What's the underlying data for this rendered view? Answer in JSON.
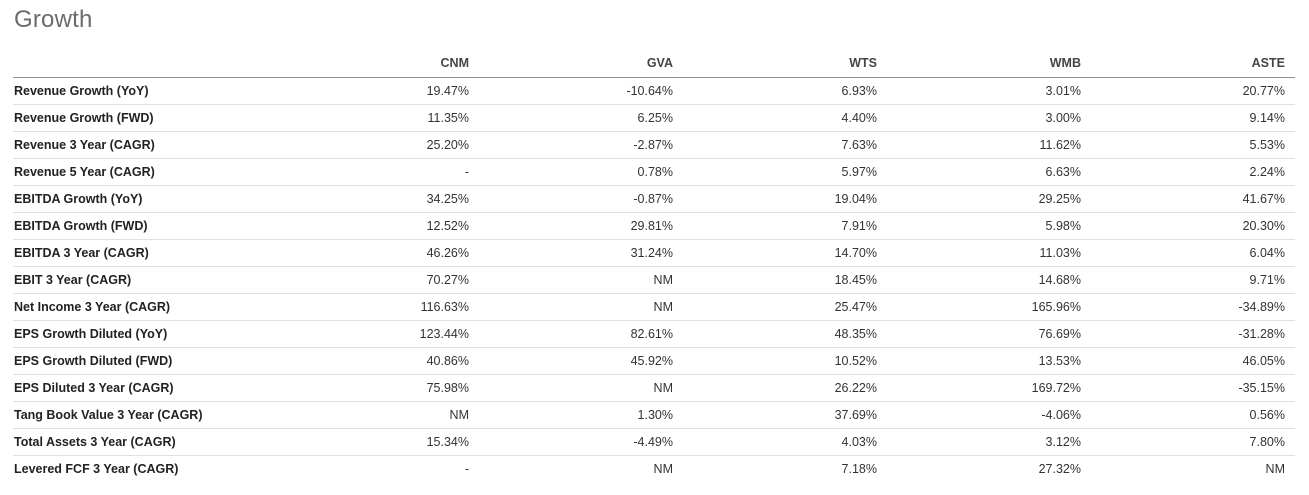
{
  "section": {
    "title": "Growth"
  },
  "table": {
    "metric_column_header": "",
    "columns": [
      "CNM",
      "GVA",
      "WTS",
      "WMB",
      "ASTE"
    ],
    "rows": [
      {
        "label": "Revenue Growth (YoY)",
        "values": [
          "19.47%",
          "-10.64%",
          "6.93%",
          "3.01%",
          "20.77%"
        ]
      },
      {
        "label": "Revenue Growth (FWD)",
        "values": [
          "11.35%",
          "6.25%",
          "4.40%",
          "3.00%",
          "9.14%"
        ]
      },
      {
        "label": "Revenue 3 Year (CAGR)",
        "values": [
          "25.20%",
          "-2.87%",
          "7.63%",
          "11.62%",
          "5.53%"
        ]
      },
      {
        "label": "Revenue 5 Year (CAGR)",
        "values": [
          "-",
          "0.78%",
          "5.97%",
          "6.63%",
          "2.24%"
        ]
      },
      {
        "label": "EBITDA Growth (YoY)",
        "values": [
          "34.25%",
          "-0.87%",
          "19.04%",
          "29.25%",
          "41.67%"
        ]
      },
      {
        "label": "EBITDA Growth (FWD)",
        "values": [
          "12.52%",
          "29.81%",
          "7.91%",
          "5.98%",
          "20.30%"
        ]
      },
      {
        "label": "EBITDA 3 Year (CAGR)",
        "values": [
          "46.26%",
          "31.24%",
          "14.70%",
          "11.03%",
          "6.04%"
        ]
      },
      {
        "label": "EBIT 3 Year (CAGR)",
        "values": [
          "70.27%",
          "NM",
          "18.45%",
          "14.68%",
          "9.71%"
        ]
      },
      {
        "label": "Net Income 3 Year (CAGR)",
        "values": [
          "116.63%",
          "NM",
          "25.47%",
          "165.96%",
          "-34.89%"
        ]
      },
      {
        "label": "EPS Growth Diluted (YoY)",
        "values": [
          "123.44%",
          "82.61%",
          "48.35%",
          "76.69%",
          "-31.28%"
        ]
      },
      {
        "label": "EPS Growth Diluted (FWD)",
        "values": [
          "40.86%",
          "45.92%",
          "10.52%",
          "13.53%",
          "46.05%"
        ]
      },
      {
        "label": "EPS Diluted 3 Year (CAGR)",
        "values": [
          "75.98%",
          "NM",
          "26.22%",
          "169.72%",
          "-35.15%"
        ]
      },
      {
        "label": "Tang Book Value 3 Year (CAGR)",
        "values": [
          "NM",
          "1.30%",
          "37.69%",
          "-4.06%",
          "0.56%"
        ]
      },
      {
        "label": "Total Assets 3 Year (CAGR)",
        "values": [
          "15.34%",
          "-4.49%",
          "4.03%",
          "3.12%",
          "7.80%"
        ]
      },
      {
        "label": "Levered FCF 3 Year (CAGR)",
        "values": [
          "-",
          "NM",
          "7.18%",
          "27.32%",
          "NM"
        ]
      }
    ]
  },
  "colors": {
    "background": "#ffffff",
    "title": "#6b6b6b",
    "header_text": "#454545",
    "label_text": "#222222",
    "value_text": "#333333",
    "header_border": "#8f8f8f",
    "row_border": "#e0e0e0"
  }
}
